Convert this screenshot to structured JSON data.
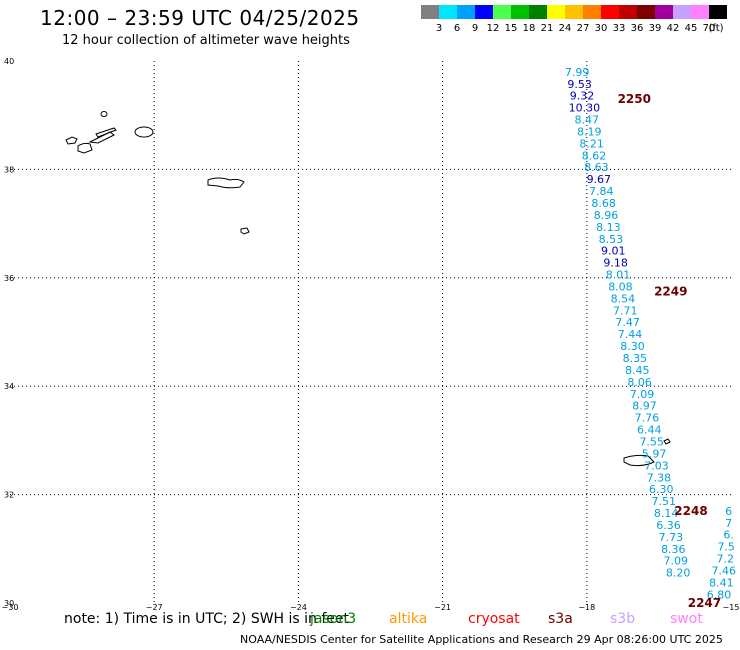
{
  "header": {
    "title": "12:00 – 23:59 UTC 04/25/2025",
    "subtitle": "12 hour collection of altimeter wave heights"
  },
  "colorbar": {
    "unit": "(ft)",
    "bins": [
      {
        "label": "3",
        "color": "#808080"
      },
      {
        "label": "6",
        "color": "#00e5ff"
      },
      {
        "label": "9",
        "color": "#00a0ff"
      },
      {
        "label": "12",
        "color": "#0000ff"
      },
      {
        "label": "15",
        "color": "#4cff4c"
      },
      {
        "label": "18",
        "color": "#00c000"
      },
      {
        "label": "21",
        "color": "#008000"
      },
      {
        "label": "24",
        "color": "#ffff00"
      },
      {
        "label": "27",
        "color": "#ffc000"
      },
      {
        "label": "30",
        "color": "#ff8000"
      },
      {
        "label": "33",
        "color": "#ff0000"
      },
      {
        "label": "36",
        "color": "#c00000"
      },
      {
        "label": "39",
        "color": "#800000"
      },
      {
        "label": "42",
        "color": "#a000a0"
      },
      {
        "label": "45",
        "color": "#c8a0ff"
      },
      {
        "label": "70",
        "color": "#ff80ff"
      },
      {
        "label": "",
        "color": "#000000"
      }
    ]
  },
  "map": {
    "lon_range": [
      -30,
      -15
    ],
    "lat_range": [
      30,
      40
    ],
    "lon_ticks": [
      "−30",
      "−27",
      "−24",
      "−21",
      "−18",
      "−15"
    ],
    "lat_ticks": [
      "30",
      "32",
      "34",
      "36",
      "38",
      "40"
    ],
    "colors": {
      "light_blue": "#00a0e0",
      "dark_blue": "#0000b0",
      "pass_label": "#6b0000"
    },
    "passes": [
      {
        "label": "2250",
        "lon": -17.36,
        "lat": 39.3
      },
      {
        "label": "2249",
        "lon": -16.6,
        "lat": 35.75
      },
      {
        "label": "2248",
        "lon": -16.18,
        "lat": 31.7
      },
      {
        "label": "2247",
        "lon": -15.9,
        "lat": 30.0
      }
    ],
    "track_main": [
      {
        "value": "7.99",
        "lon": -18.2,
        "lat": 39.8,
        "c": "light_blue"
      },
      {
        "value": "9.53",
        "lon": -18.15,
        "lat": 39.58,
        "c": "dark_blue"
      },
      {
        "value": "9.32",
        "lon": -18.1,
        "lat": 39.36,
        "c": "dark_blue"
      },
      {
        "value": "10.30",
        "lon": -18.05,
        "lat": 39.14,
        "c": "dark_blue"
      },
      {
        "value": "8.47",
        "lon": -18.0,
        "lat": 38.92,
        "c": "light_blue"
      },
      {
        "value": "8.19",
        "lon": -17.95,
        "lat": 38.7,
        "c": "light_blue"
      },
      {
        "value": "8.21",
        "lon": -17.9,
        "lat": 38.48,
        "c": "light_blue"
      },
      {
        "value": "8.62",
        "lon": -17.85,
        "lat": 38.26,
        "c": "light_blue"
      },
      {
        "value": "8.63",
        "lon": -17.8,
        "lat": 38.04,
        "c": "light_blue"
      },
      {
        "value": "9.67",
        "lon": -17.75,
        "lat": 37.82,
        "c": "dark_blue"
      },
      {
        "value": "7.84",
        "lon": -17.7,
        "lat": 37.6,
        "c": "light_blue"
      },
      {
        "value": "8.68",
        "lon": -17.65,
        "lat": 37.38,
        "c": "light_blue"
      },
      {
        "value": "8.96",
        "lon": -17.6,
        "lat": 37.16,
        "c": "light_blue"
      },
      {
        "value": "8.13",
        "lon": -17.55,
        "lat": 36.94,
        "c": "light_blue"
      },
      {
        "value": "8.53",
        "lon": -17.5,
        "lat": 36.72,
        "c": "light_blue"
      },
      {
        "value": "9.01",
        "lon": -17.45,
        "lat": 36.5,
        "c": "dark_blue"
      },
      {
        "value": "9.18",
        "lon": -17.4,
        "lat": 36.28,
        "c": "dark_blue"
      },
      {
        "value": "8.01",
        "lon": -17.35,
        "lat": 36.06,
        "c": "light_blue"
      },
      {
        "value": "8.08",
        "lon": -17.3,
        "lat": 35.84,
        "c": "light_blue"
      },
      {
        "value": "8.54",
        "lon": -17.25,
        "lat": 35.62,
        "c": "light_blue"
      },
      {
        "value": "7.71",
        "lon": -17.2,
        "lat": 35.4,
        "c": "light_blue"
      },
      {
        "value": "7.47",
        "lon": -17.15,
        "lat": 35.18,
        "c": "light_blue"
      },
      {
        "value": "7.44",
        "lon": -17.1,
        "lat": 34.96,
        "c": "light_blue"
      },
      {
        "value": "8.30",
        "lon": -17.05,
        "lat": 34.74,
        "c": "light_blue"
      },
      {
        "value": "8.35",
        "lon": -17.0,
        "lat": 34.52,
        "c": "light_blue"
      },
      {
        "value": "8.45",
        "lon": -16.95,
        "lat": 34.3,
        "c": "light_blue"
      },
      {
        "value": "8.06",
        "lon": -16.9,
        "lat": 34.08,
        "c": "light_blue"
      },
      {
        "value": "7.09",
        "lon": -16.85,
        "lat": 33.86,
        "c": "light_blue"
      },
      {
        "value": "8.97",
        "lon": -16.8,
        "lat": 33.64,
        "c": "light_blue"
      },
      {
        "value": "7.76",
        "lon": -16.75,
        "lat": 33.42,
        "c": "light_blue"
      },
      {
        "value": "6.44",
        "lon": -16.7,
        "lat": 33.2,
        "c": "light_blue"
      },
      {
        "value": "7.55",
        "lon": -16.65,
        "lat": 32.98,
        "c": "light_blue"
      },
      {
        "value": "5.97",
        "lon": -16.6,
        "lat": 32.76,
        "c": "light_blue"
      },
      {
        "value": "7.03",
        "lon": -16.55,
        "lat": 32.54,
        "c": "light_blue"
      },
      {
        "value": "7.38",
        "lon": -16.5,
        "lat": 32.32,
        "c": "light_blue"
      },
      {
        "value": "6.30",
        "lon": -16.45,
        "lat": 32.1,
        "c": "light_blue"
      },
      {
        "value": "7.51",
        "lon": -16.4,
        "lat": 31.88,
        "c": "light_blue"
      },
      {
        "value": "8.14",
        "lon": -16.35,
        "lat": 31.66,
        "c": "light_blue"
      },
      {
        "value": "6.36",
        "lon": -16.3,
        "lat": 31.44,
        "c": "light_blue"
      },
      {
        "value": "7.73",
        "lon": -16.25,
        "lat": 31.22,
        "c": "light_blue"
      },
      {
        "value": "8.36",
        "lon": -16.2,
        "lat": 31.0,
        "c": "light_blue"
      },
      {
        "value": "7.09",
        "lon": -16.15,
        "lat": 30.78,
        "c": "light_blue"
      },
      {
        "value": "8.20",
        "lon": -16.1,
        "lat": 30.56,
        "c": "light_blue"
      }
    ],
    "track_edge": [
      {
        "value": "6",
        "lon": -15.05,
        "lat": 31.7,
        "c": "light_blue"
      },
      {
        "value": "7",
        "lon": -15.05,
        "lat": 31.48,
        "c": "light_blue"
      },
      {
        "value": "6.",
        "lon": -15.05,
        "lat": 31.26,
        "c": "light_blue"
      },
      {
        "value": "7.5",
        "lon": -15.1,
        "lat": 31.04,
        "c": "light_blue"
      },
      {
        "value": "7.2",
        "lon": -15.12,
        "lat": 30.82,
        "c": "light_blue"
      },
      {
        "value": "7.46",
        "lon": -15.15,
        "lat": 30.6,
        "c": "light_blue"
      },
      {
        "value": "8.41",
        "lon": -15.2,
        "lat": 30.38,
        "c": "light_blue"
      },
      {
        "value": "6.80",
        "lon": -15.25,
        "lat": 30.16,
        "c": "light_blue"
      }
    ]
  },
  "legend": {
    "note": "note:  1) Time is in UTC;  2) SWH is in feet",
    "satellites": [
      {
        "name": "jason3",
        "color": "#008000"
      },
      {
        "name": "altika",
        "color": "#ff9900"
      },
      {
        "name": "cryosat",
        "color": "#ff0000"
      },
      {
        "name": "s3a",
        "color": "#6b0000"
      },
      {
        "name": "s3b",
        "color": "#c8a0ff"
      },
      {
        "name": "swot",
        "color": "#ff80ff"
      }
    ]
  },
  "footer": {
    "credit": "NOAA/NESDIS Center for Satellite Applications and Research    29 Apr 08:26:00 UTC 2025"
  }
}
